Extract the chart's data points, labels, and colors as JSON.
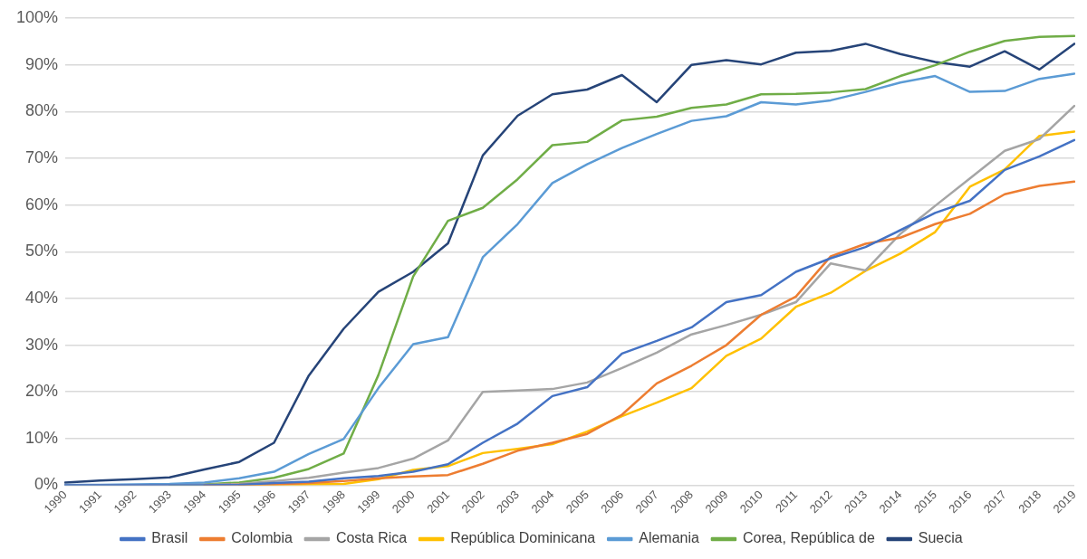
{
  "chart_data": {
    "type": "line",
    "categories": [
      "1990",
      "1991",
      "1992",
      "1993",
      "1994",
      "1995",
      "1996",
      "1997",
      "1998",
      "1999",
      "2000",
      "2001",
      "2002",
      "2003",
      "2004",
      "2005",
      "2006",
      "2007",
      "2008",
      "2009",
      "2010",
      "2011",
      "2012",
      "2013",
      "2014",
      "2015",
      "2016",
      "2017",
      "2018",
      "2019"
    ],
    "series": [
      {
        "name": "Brasil",
        "color": "#4472c4",
        "values": [
          0,
          0,
          0,
          0,
          0,
          0.1,
          0.5,
          0.8,
          1.5,
          2,
          2.9,
          4.5,
          9.1,
          13.2,
          19.1,
          21,
          28.2,
          30.9,
          33.8,
          39.2,
          40.7,
          45.7,
          48.6,
          51,
          54.6,
          58.3,
          60.9,
          67.5,
          70.4,
          73.9
        ]
      },
      {
        "name": "Colombia",
        "color": "#ed7d31",
        "values": [
          null,
          null,
          null,
          null,
          0,
          0.1,
          0.2,
          0.5,
          0.9,
          1.5,
          1.9,
          2.2,
          4.6,
          7.4,
          9.1,
          11,
          15.1,
          21.8,
          25.6,
          30,
          36.5,
          40.4,
          49,
          51.7,
          53,
          55.9,
          58.1,
          62.3,
          64.1,
          65
        ]
      },
      {
        "name": "Costa Rica",
        "color": "#a5a5a5",
        "values": [
          0,
          0,
          0,
          0,
          0.1,
          0.3,
          0.9,
          1.6,
          2.7,
          3.7,
          5.7,
          9.6,
          20,
          20.3,
          20.6,
          22,
          25.1,
          28.4,
          32.3,
          34.3,
          36.5,
          39.2,
          47.5,
          46,
          53.8,
          59.8,
          65.7,
          71.6,
          74.1,
          81.2
        ]
      },
      {
        "name": "República Dominicana",
        "color": "#ffc000",
        "values": [
          null,
          null,
          null,
          null,
          null,
          0,
          0,
          0.2,
          0.3,
          1.3,
          3.3,
          4.1,
          6.9,
          7.8,
          8.8,
          11.5,
          14.8,
          17.7,
          20.8,
          27.7,
          31.4,
          38.2,
          41.2,
          45.9,
          49.6,
          54.2,
          63.9,
          67.6,
          74.8,
          75.7
        ]
      },
      {
        "name": "Alemania",
        "color": "#5b9bd5",
        "values": [
          0.1,
          0.1,
          0.2,
          0.3,
          0.6,
          1.5,
          2.9,
          6.7,
          9.9,
          20.8,
          30.2,
          31.7,
          48.8,
          55.9,
          64.7,
          68.7,
          72.2,
          75.2,
          78,
          79,
          82,
          81.5,
          82.4,
          84.2,
          86.2,
          87.6,
          84.2,
          84.4,
          87,
          88.1
        ]
      },
      {
        "name": "Corea, República de",
        "color": "#70ad47",
        "values": [
          null,
          null,
          null,
          0,
          0.2,
          0.6,
          1.6,
          3.5,
          6.8,
          23.6,
          44.7,
          56.6,
          59.4,
          65.5,
          72.8,
          73.5,
          78.1,
          78.9,
          80.8,
          81.5,
          83.7,
          83.8,
          84.1,
          84.8,
          87.6,
          89.9,
          92.8,
          95.1,
          96,
          96.2
        ]
      },
      {
        "name": "Suecia",
        "color": "#264478",
        "values": [
          0.6,
          1,
          1.3,
          1.7,
          3.4,
          5,
          9.1,
          23.5,
          33.5,
          41.4,
          45.7,
          51.8,
          70.6,
          79.1,
          83.7,
          84.7,
          87.8,
          82,
          90,
          91,
          90.1,
          92.6,
          93,
          94.5,
          92.3,
          90.6,
          89.6,
          92.9,
          89,
          94.5
        ]
      }
    ],
    "ylim": [
      0,
      100
    ],
    "yticks": [
      {
        "value": 0,
        "label": "0%"
      },
      {
        "value": 10,
        "label": "10%"
      },
      {
        "value": 20,
        "label": "20%"
      },
      {
        "value": 30,
        "label": "30%"
      },
      {
        "value": 40,
        "label": "40%"
      },
      {
        "value": 50,
        "label": "50%"
      },
      {
        "value": 60,
        "label": "60%"
      },
      {
        "value": 70,
        "label": "70%"
      },
      {
        "value": 80,
        "label": "80%"
      },
      {
        "value": 90,
        "label": "90%"
      },
      {
        "value": 100,
        "label": "100%"
      }
    ],
    "grid": "y",
    "legend": "bottom",
    "marker": "none",
    "line_style": "solid"
  }
}
